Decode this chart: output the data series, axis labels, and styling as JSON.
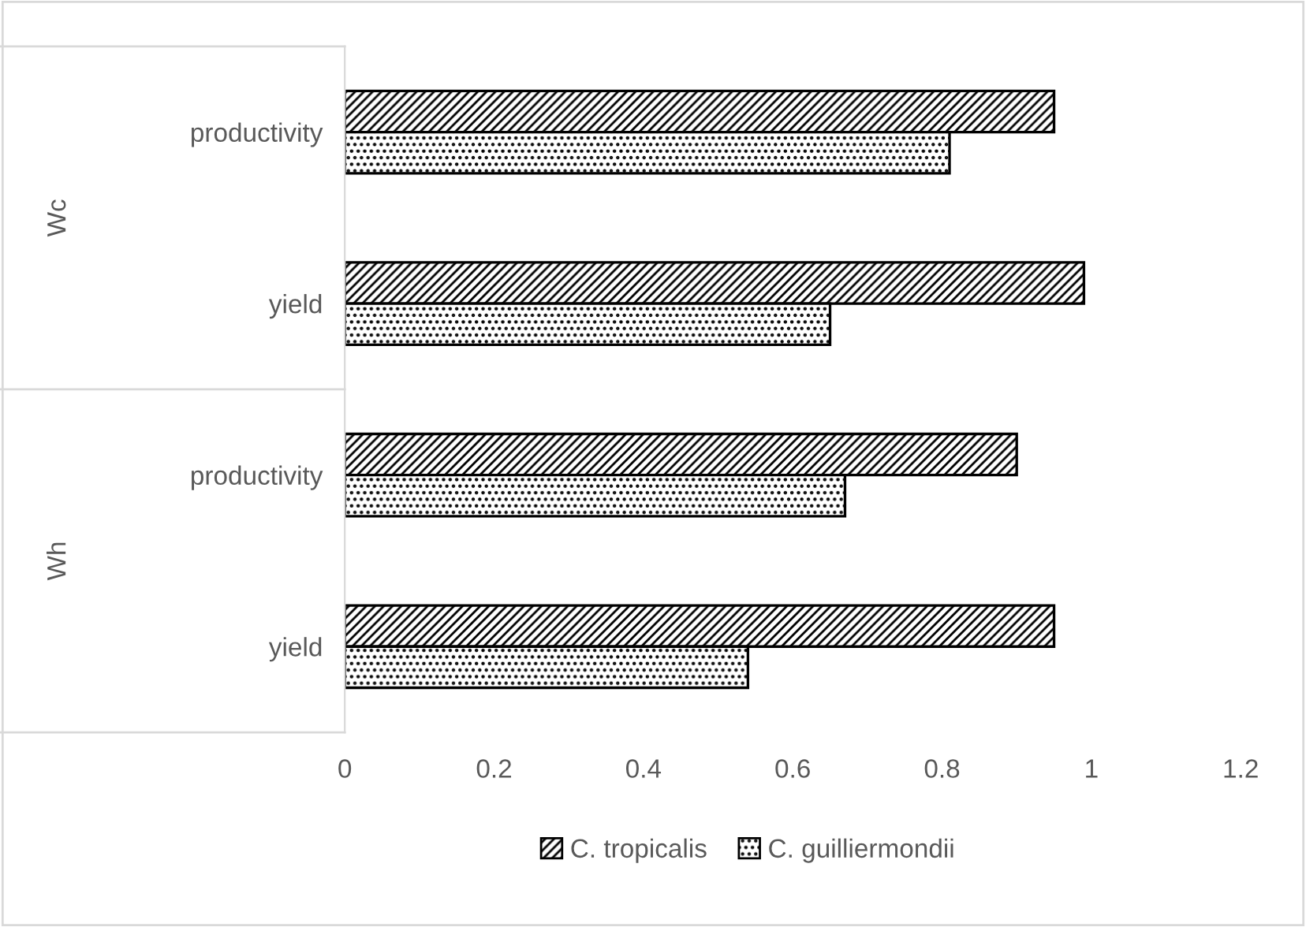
{
  "chart_data": {
    "type": "bar",
    "orientation": "horizontal",
    "categories": [
      "productivity",
      "yield",
      "productivity",
      "yield"
    ],
    "annotations": [
      "Wc",
      "Wh"
    ],
    "series": [
      {
        "name": "C. tropicalis",
        "color": "#000000",
        "values": [
          0.95,
          0.99,
          0.9,
          0.95
        ]
      },
      {
        "name": "C. guilliermondii",
        "color": "#000000",
        "values": [
          0.81,
          0.65,
          0.67,
          0.54
        ]
      }
    ],
    "xlim": [
      0,
      1.2
    ],
    "xticks": [
      0,
      0.2,
      0.4,
      0.6,
      0.8,
      1,
      1.2
    ],
    "grid": false,
    "legend": "bottom"
  }
}
